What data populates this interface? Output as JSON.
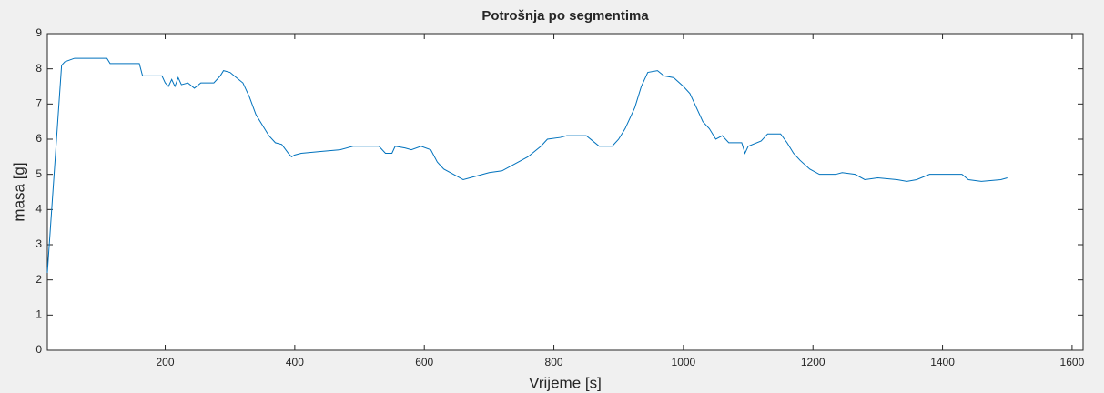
{
  "chart_data": {
    "type": "line",
    "title": "Potrošnja po segmentima",
    "x_label": "Vrijeme [s]",
    "y_label": "masa [g]",
    "x": [
      18,
      40,
      45,
      60,
      110,
      115,
      160,
      165,
      195,
      200,
      205,
      210,
      215,
      220,
      225,
      235,
      245,
      255,
      275,
      285,
      290,
      300,
      310,
      320,
      330,
      340,
      350,
      360,
      370,
      380,
      390,
      395,
      400,
      410,
      440,
      470,
      490,
      530,
      540,
      550,
      555,
      570,
      580,
      595,
      610,
      620,
      630,
      650,
      660,
      680,
      700,
      720,
      740,
      760,
      780,
      790,
      810,
      820,
      850,
      860,
      870,
      890,
      900,
      910,
      925,
      935,
      945,
      960,
      970,
      985,
      1000,
      1010,
      1020,
      1030,
      1040,
      1050,
      1060,
      1070,
      1090,
      1095,
      1100,
      1120,
      1130,
      1150,
      1160,
      1170,
      1180,
      1195,
      1210,
      1235,
      1245,
      1265,
      1280,
      1300,
      1330,
      1345,
      1360,
      1380,
      1430,
      1440,
      1460,
      1490,
      1500
    ],
    "series": [
      {
        "name": "masa",
        "color": "#0072bd",
        "values": [
          2.2,
          8.1,
          8.2,
          8.3,
          8.3,
          8.15,
          8.15,
          7.8,
          7.8,
          7.6,
          7.5,
          7.7,
          7.5,
          7.75,
          7.55,
          7.6,
          7.45,
          7.6,
          7.6,
          7.8,
          7.95,
          7.9,
          7.75,
          7.6,
          7.2,
          6.7,
          6.4,
          6.1,
          5.9,
          5.85,
          5.6,
          5.5,
          5.55,
          5.6,
          5.65,
          5.7,
          5.8,
          5.8,
          5.6,
          5.6,
          5.8,
          5.75,
          5.7,
          5.8,
          5.7,
          5.35,
          5.15,
          4.95,
          4.85,
          4.95,
          5.05,
          5.1,
          5.3,
          5.5,
          5.8,
          6.0,
          6.05,
          6.1,
          6.1,
          5.95,
          5.8,
          5.8,
          6.0,
          6.3,
          6.9,
          7.5,
          7.9,
          7.95,
          7.8,
          7.75,
          7.5,
          7.3,
          6.9,
          6.5,
          6.3,
          6.0,
          6.1,
          5.9,
          5.9,
          5.6,
          5.8,
          5.95,
          6.15,
          6.15,
          5.9,
          5.6,
          5.4,
          5.15,
          5.0,
          5.0,
          5.05,
          5.0,
          4.85,
          4.9,
          4.85,
          4.8,
          4.85,
          5.0,
          5.0,
          4.85,
          4.8,
          4.85,
          4.9
        ]
      }
    ],
    "xlim": [
      18,
      1617
    ],
    "xticks": [
      200,
      400,
      600,
      800,
      1000,
      1200,
      1400,
      1600
    ],
    "ylim": [
      0,
      9
    ],
    "yticks": [
      0,
      1,
      2,
      3,
      4,
      5,
      6,
      7,
      8,
      9
    ],
    "grid": false
  }
}
